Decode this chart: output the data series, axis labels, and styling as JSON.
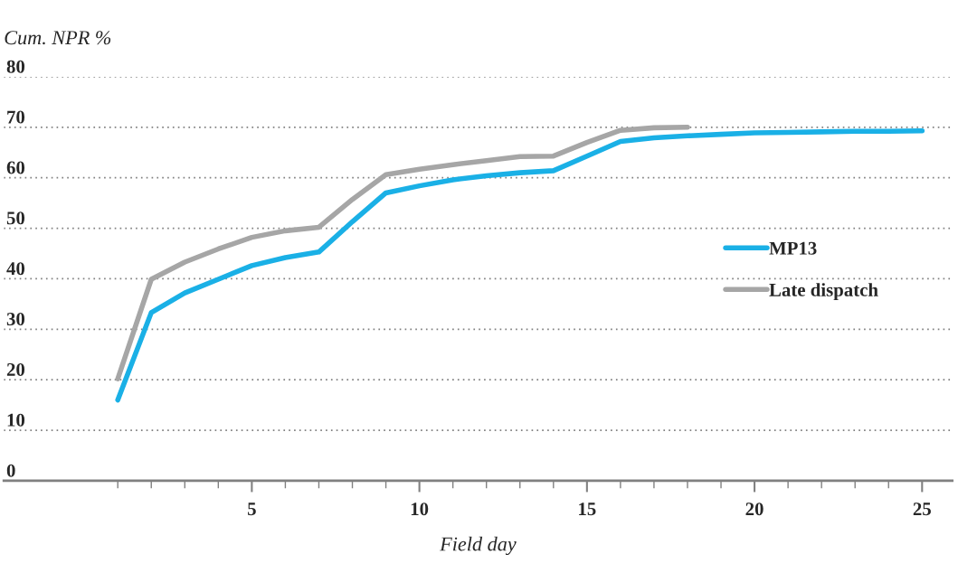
{
  "chart_data": {
    "type": "line",
    "xlabel": "Field day",
    "ylabel": "Cum. NPR %",
    "xlim": [
      -2.4,
      25.9
    ],
    "ylim": [
      0,
      80
    ],
    "xticks": [
      {
        "value": 1,
        "label": null
      },
      {
        "value": 2,
        "label": null
      },
      {
        "value": 3,
        "label": null
      },
      {
        "value": 4,
        "label": null
      },
      5,
      {
        "value": 6,
        "label": null
      },
      {
        "value": 7,
        "label": null
      },
      {
        "value": 8,
        "label": null
      },
      {
        "value": 9,
        "label": null
      },
      10,
      {
        "value": 11,
        "label": null
      },
      {
        "value": 12,
        "label": null
      },
      {
        "value": 13,
        "label": null
      },
      {
        "value": 14,
        "label": null
      },
      15,
      {
        "value": 16,
        "label": null
      },
      {
        "value": 17,
        "label": null
      },
      {
        "value": 18,
        "label": null
      },
      {
        "value": 19,
        "label": null
      },
      20,
      {
        "value": 21,
        "label": null
      },
      {
        "value": 22,
        "label": null
      },
      {
        "value": 23,
        "label": null
      },
      {
        "value": 24,
        "label": null
      },
      25
    ],
    "yticks": [
      0,
      10,
      20,
      30,
      40,
      50,
      60,
      70,
      80
    ],
    "grid": "y",
    "legend": "center right",
    "line_style": "solid",
    "marker": "none",
    "series": [
      {
        "name": "MP13",
        "color": "#1ab0e6",
        "x": [
          1,
          2,
          3,
          4,
          5,
          6,
          7,
          8,
          9,
          10,
          11,
          12,
          13,
          14,
          15,
          16,
          17,
          18,
          19,
          20,
          21,
          22,
          23,
          24,
          25
        ],
        "values": [
          16,
          33.3,
          37.2,
          39.9,
          42.6,
          44.2,
          45.3,
          51.3,
          57.0,
          58.4,
          59.6,
          60.4,
          61.0,
          61.4,
          64.3,
          67.2,
          67.9,
          68.3,
          68.6,
          68.9,
          69.0,
          69.1,
          69.2,
          69.2,
          69.3
        ]
      },
      {
        "name": "Late dispatch",
        "color": "#a6a6a6",
        "x": [
          1,
          2,
          3,
          4,
          5,
          6,
          7,
          8,
          9,
          10,
          11,
          12,
          13,
          14,
          15,
          16,
          17,
          18
        ],
        "values": [
          20.2,
          39.9,
          43.3,
          45.9,
          48.2,
          49.5,
          50.2,
          55.7,
          60.6,
          61.7,
          62.6,
          63.4,
          64.2,
          64.3,
          67.0,
          69.4,
          69.9,
          70.0
        ]
      }
    ]
  }
}
